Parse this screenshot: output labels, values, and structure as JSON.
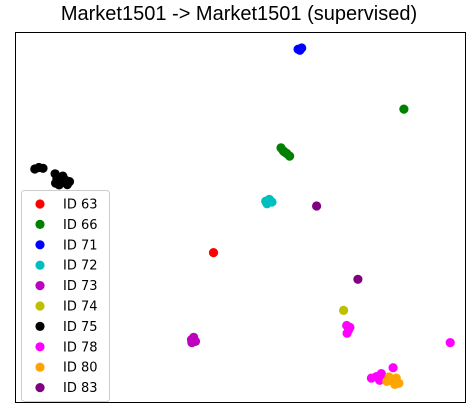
{
  "chart_data": {
    "type": "scatter",
    "title": "Market1501 -> Market1501 (supervised)",
    "xlabel": "",
    "ylabel": "",
    "axis_ticks": "none",
    "grid": false,
    "legend_position": "lower-left",
    "xlim": [
      0,
      100
    ],
    "ylim": [
      0,
      100
    ],
    "series": [
      {
        "name": "ID 63",
        "color": "#ff0000",
        "points": [
          [
            44.0,
            40.5
          ]
        ]
      },
      {
        "name": "ID 66",
        "color": "#008000",
        "points": [
          [
            86.3,
            79.3
          ],
          [
            59.0,
            68.8
          ],
          [
            59.5,
            68.0
          ],
          [
            60.3,
            67.3
          ],
          [
            60.9,
            66.6
          ],
          [
            59.8,
            67.7
          ]
        ]
      },
      {
        "name": "ID 71",
        "color": "#0000ff",
        "points": [
          [
            62.8,
            95.5
          ],
          [
            63.6,
            95.8
          ],
          [
            63.2,
            95.2
          ]
        ]
      },
      {
        "name": "ID 72",
        "color": "#00bfbf",
        "points": [
          [
            55.6,
            54.4
          ],
          [
            56.4,
            54.9
          ],
          [
            57.0,
            54.2
          ],
          [
            55.9,
            53.7
          ]
        ]
      },
      {
        "name": "ID 73",
        "color": "#bf00bf",
        "points": [
          [
            39.1,
            17.0
          ],
          [
            40.0,
            16.5
          ],
          [
            39.6,
            17.6
          ],
          [
            39.2,
            16.2
          ]
        ]
      },
      {
        "name": "ID 74",
        "color": "#bfbf00",
        "points": [
          [
            72.9,
            24.9
          ]
        ]
      },
      {
        "name": "ID 75",
        "color": "#000000",
        "points": [
          [
            4.3,
            63.1
          ],
          [
            5.2,
            63.5
          ],
          [
            6.1,
            63.3
          ],
          [
            8.8,
            61.8
          ],
          [
            9.2,
            60.5
          ],
          [
            10.1,
            59.5
          ],
          [
            11.0,
            60.2
          ],
          [
            12.0,
            59.7
          ],
          [
            10.5,
            61.2
          ],
          [
            9.7,
            58.8
          ],
          [
            11.5,
            58.9
          ],
          [
            8.9,
            59.3
          ]
        ]
      },
      {
        "name": "ID 78",
        "color": "#ff00ff",
        "points": [
          [
            73.6,
            20.8
          ],
          [
            74.0,
            19.6
          ],
          [
            73.7,
            18.7
          ],
          [
            74.3,
            20.3
          ],
          [
            83.9,
            9.4
          ],
          [
            96.6,
            16.2
          ],
          [
            79.1,
            6.6
          ],
          [
            80.2,
            7.0
          ],
          [
            81.3,
            7.8
          ],
          [
            82.1,
            6.5
          ],
          [
            80.9,
            6.0
          ]
        ]
      },
      {
        "name": "ID 80",
        "color": "#ffa500",
        "points": [
          [
            82.5,
            5.7
          ],
          [
            83.3,
            6.2
          ],
          [
            84.1,
            5.5
          ],
          [
            84.6,
            6.6
          ],
          [
            85.2,
            5.2
          ],
          [
            83.0,
            6.9
          ],
          [
            84.3,
            4.9
          ]
        ]
      },
      {
        "name": "ID 83",
        "color": "#800080",
        "points": [
          [
            66.9,
            53.1
          ],
          [
            76.1,
            33.3
          ]
        ]
      }
    ]
  }
}
